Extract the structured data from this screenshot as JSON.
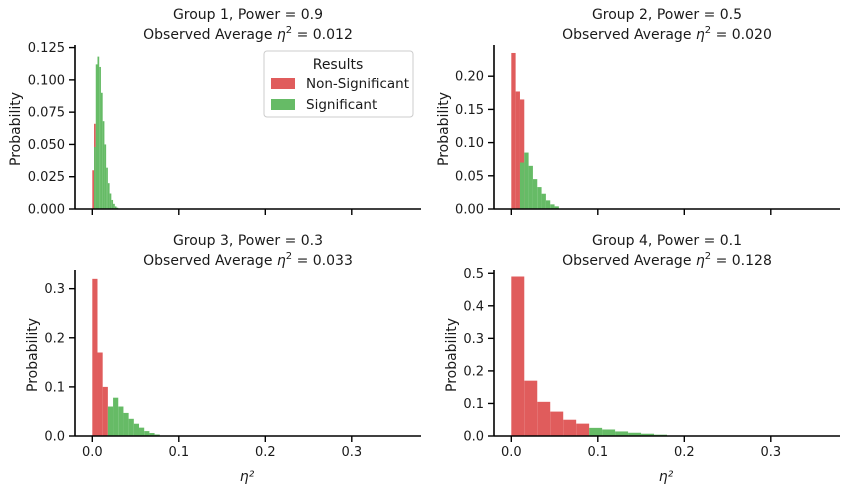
{
  "chart_data": [
    {
      "type": "bar",
      "title": "Group 1, Power = 0.9",
      "subtitle_prefix": "Observed Average ",
      "subtitle_symbol": "η",
      "subtitle_exp": "2",
      "subtitle_value": " = 0.012",
      "ylabel": "Probability",
      "xlabel": "",
      "xlim": [
        -0.02,
        0.38
      ],
      "ylim": [
        0,
        0.127
      ],
      "yticks": [
        "0.000",
        "0.025",
        "0.050",
        "0.075",
        "0.100",
        "0.125"
      ],
      "ytick_values": [
        0,
        0.025,
        0.05,
        0.075,
        0.1,
        0.125
      ],
      "xticks": [
        0.0,
        0.1,
        0.2,
        0.3
      ],
      "xtick_labels": [],
      "bin_width": 0.002,
      "series": [
        {
          "name": "Non-Significant",
          "bins": [
            {
              "x0": 0.0,
              "v": 0.03
            },
            {
              "x0": 0.002,
              "v": 0.066
            }
          ]
        },
        {
          "name": "Significant",
          "bins": [
            {
              "x0": 0.002,
              "v": 0.048
            },
            {
              "x0": 0.004,
              "v": 0.112
            },
            {
              "x0": 0.006,
              "v": 0.118
            },
            {
              "x0": 0.008,
              "v": 0.11
            },
            {
              "x0": 0.01,
              "v": 0.09
            },
            {
              "x0": 0.012,
              "v": 0.068
            },
            {
              "x0": 0.014,
              "v": 0.05
            },
            {
              "x0": 0.016,
              "v": 0.032
            },
            {
              "x0": 0.018,
              "v": 0.02
            },
            {
              "x0": 0.02,
              "v": 0.012
            },
            {
              "x0": 0.022,
              "v": 0.007
            },
            {
              "x0": 0.024,
              "v": 0.004
            },
            {
              "x0": 0.026,
              "v": 0.002
            },
            {
              "x0": 0.028,
              "v": 0.001
            }
          ]
        }
      ]
    },
    {
      "type": "bar",
      "title": "Group 2, Power = 0.5",
      "subtitle_prefix": "Observed Average ",
      "subtitle_symbol": "η",
      "subtitle_exp": "2",
      "subtitle_value": " = 0.020",
      "ylabel": "Probability",
      "xlabel": "",
      "xlim": [
        -0.02,
        0.38
      ],
      "ylim": [
        0,
        0.247
      ],
      "yticks": [
        "0.00",
        "0.05",
        "0.10",
        "0.15",
        "0.20"
      ],
      "ytick_values": [
        0,
        0.05,
        0.1,
        0.15,
        0.2
      ],
      "xticks": [
        0.0,
        0.1,
        0.2,
        0.3
      ],
      "xtick_labels": [],
      "bin_width": 0.005,
      "series": [
        {
          "name": "Non-Significant",
          "bins": [
            {
              "x0": 0.0,
              "v": 0.235
            },
            {
              "x0": 0.005,
              "v": 0.177
            },
            {
              "x0": 0.01,
              "v": 0.165
            }
          ]
        },
        {
          "name": "Significant",
          "bins": [
            {
              "x0": 0.005,
              "v": 0.0
            },
            {
              "x0": 0.01,
              "v": 0.07
            },
            {
              "x0": 0.015,
              "v": 0.085
            },
            {
              "x0": 0.02,
              "v": 0.065
            },
            {
              "x0": 0.025,
              "v": 0.045
            },
            {
              "x0": 0.03,
              "v": 0.033
            },
            {
              "x0": 0.035,
              "v": 0.023
            },
            {
              "x0": 0.04,
              "v": 0.013
            },
            {
              "x0": 0.045,
              "v": 0.007
            },
            {
              "x0": 0.05,
              "v": 0.004
            }
          ]
        }
      ]
    },
    {
      "type": "bar",
      "title": "Group 3, Power = 0.3",
      "subtitle_prefix": "Observed Average ",
      "subtitle_symbol": "η",
      "subtitle_exp": "2",
      "subtitle_value": " = 0.033",
      "ylabel": "Probability",
      "xlabel": "η²",
      "xlim": [
        -0.02,
        0.38
      ],
      "ylim": [
        0,
        0.338
      ],
      "yticks": [
        "0.0",
        "0.1",
        "0.2",
        "0.3"
      ],
      "ytick_values": [
        0,
        0.1,
        0.2,
        0.3
      ],
      "xticks": [
        0.0,
        0.1,
        0.2,
        0.3
      ],
      "xtick_labels": [
        "0.0",
        "0.1",
        "0.2",
        "0.3"
      ],
      "bin_width": 0.006,
      "series": [
        {
          "name": "Non-Significant",
          "bins": [
            {
              "x0": 0.0,
              "v": 0.32
            },
            {
              "x0": 0.006,
              "v": 0.17
            },
            {
              "x0": 0.012,
              "v": 0.1
            }
          ]
        },
        {
          "name": "Significant",
          "bins": [
            {
              "x0": 0.018,
              "v": 0.06
            },
            {
              "x0": 0.024,
              "v": 0.078
            },
            {
              "x0": 0.03,
              "v": 0.06
            },
            {
              "x0": 0.036,
              "v": 0.047
            },
            {
              "x0": 0.042,
              "v": 0.035
            },
            {
              "x0": 0.048,
              "v": 0.025
            },
            {
              "x0": 0.054,
              "v": 0.017
            },
            {
              "x0": 0.06,
              "v": 0.01
            },
            {
              "x0": 0.066,
              "v": 0.006
            },
            {
              "x0": 0.072,
              "v": 0.003
            }
          ]
        }
      ]
    },
    {
      "type": "bar",
      "title": "Group 4, Power = 0.1",
      "subtitle_prefix": "Observed Average ",
      "subtitle_symbol": "η",
      "subtitle_exp": "2",
      "subtitle_value": " = 0.128",
      "ylabel": "Probability",
      "xlabel": "η²",
      "xlim": [
        -0.02,
        0.38
      ],
      "ylim": [
        0,
        0.51
      ],
      "yticks": [
        "0.0",
        "0.1",
        "0.2",
        "0.3",
        "0.4",
        "0.5"
      ],
      "ytick_values": [
        0,
        0.1,
        0.2,
        0.3,
        0.4,
        0.5
      ],
      "xticks": [
        0.0,
        0.1,
        0.2,
        0.3
      ],
      "xtick_labels": [
        "0.0",
        "0.1",
        "0.2",
        "0.3"
      ],
      "bin_width": 0.015,
      "series": [
        {
          "name": "Non-Significant",
          "bins": [
            {
              "x0": 0.0,
              "v": 0.49
            },
            {
              "x0": 0.015,
              "v": 0.17
            },
            {
              "x0": 0.03,
              "v": 0.105
            },
            {
              "x0": 0.045,
              "v": 0.075
            },
            {
              "x0": 0.06,
              "v": 0.05
            },
            {
              "x0": 0.075,
              "v": 0.038
            }
          ]
        },
        {
          "name": "Significant",
          "bins": [
            {
              "x0": 0.09,
              "v": 0.025
            },
            {
              "x0": 0.105,
              "v": 0.02
            },
            {
              "x0": 0.12,
              "v": 0.014
            },
            {
              "x0": 0.135,
              "v": 0.01
            },
            {
              "x0": 0.15,
              "v": 0.007
            },
            {
              "x0": 0.165,
              "v": 0.004
            }
          ]
        }
      ]
    }
  ],
  "legend": {
    "title": "Results",
    "entries": [
      {
        "label": "Non-Significant",
        "color": "#e05c5c"
      },
      {
        "label": "Significant",
        "color": "#66bb66"
      }
    ],
    "placement": "top-right of first panel"
  }
}
